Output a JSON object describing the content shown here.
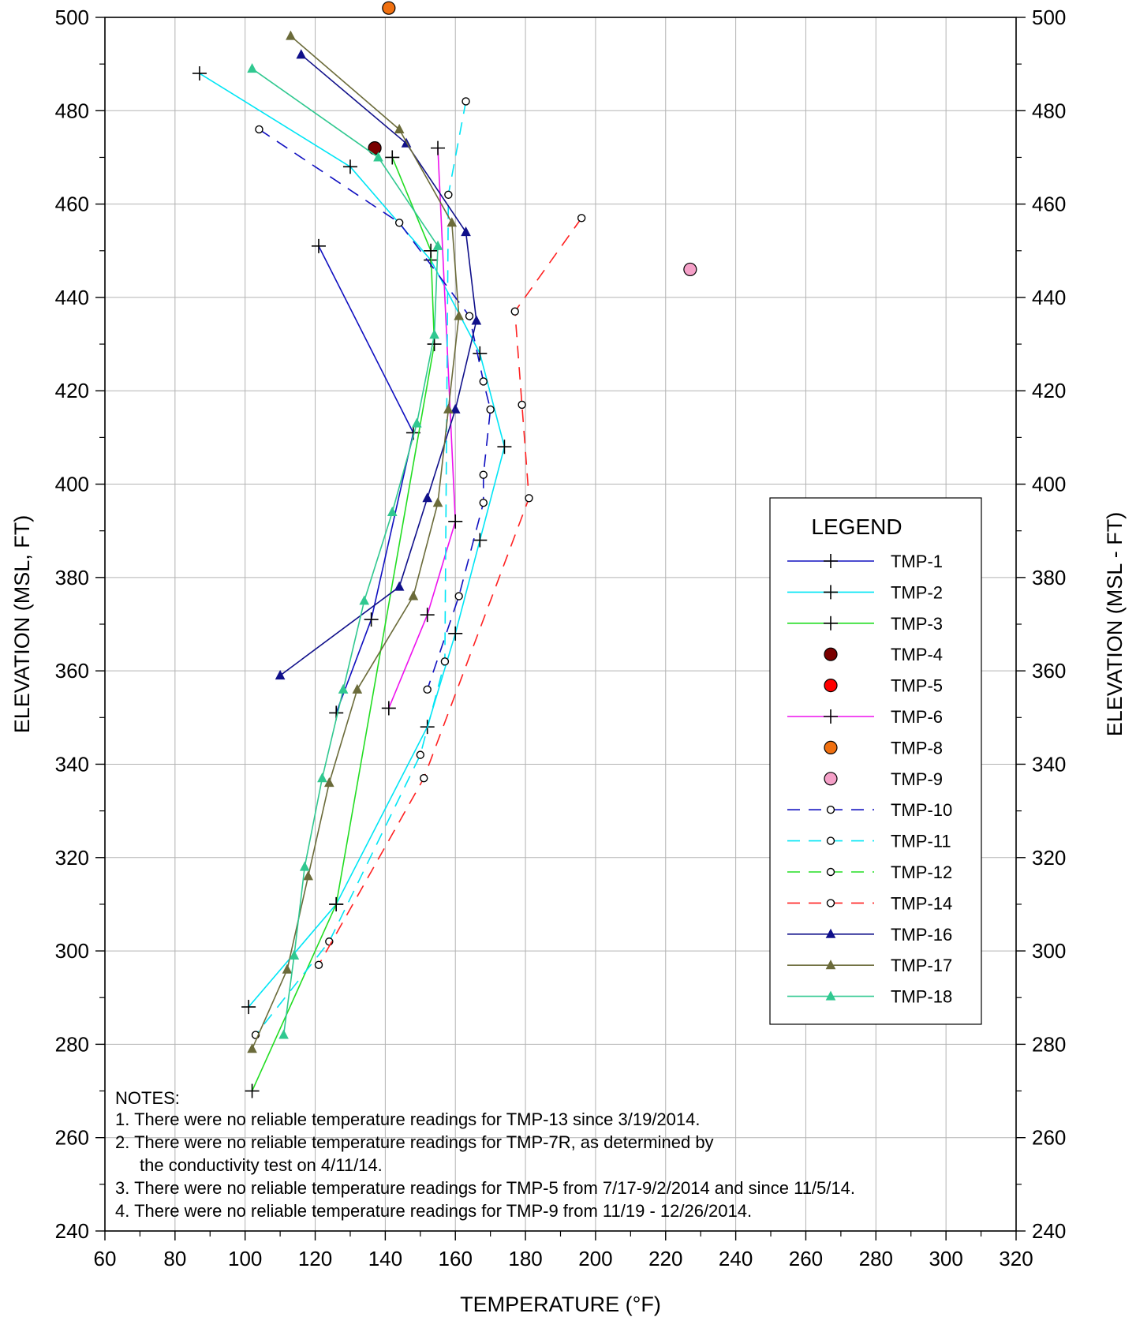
{
  "chart_data": {
    "type": "line",
    "xlabel": "TEMPERATURE (°F)",
    "ylabel_left": "ELEVATION (MSL, FT)",
    "ylabel_right": "ELEVATION (MSL - FT)",
    "xlim": [
      60,
      320
    ],
    "ylim": [
      240,
      500
    ],
    "x_ticks": [
      60,
      80,
      100,
      120,
      140,
      160,
      180,
      200,
      220,
      240,
      260,
      280,
      300,
      320
    ],
    "y_ticks": [
      240,
      260,
      280,
      300,
      320,
      340,
      360,
      380,
      400,
      420,
      440,
      460,
      480,
      500
    ],
    "grid": true,
    "legend_title": "LEGEND",
    "legend_position": "right",
    "notes_title": "NOTES:",
    "notes": [
      "1. There were no reliable temperature readings for TMP-13 since 3/19/2014.",
      "2. There were no reliable temperature readings for TMP-7R, as determined by",
      "the conductivity test on 4/11/14.",
      "3. There were no reliable temperature readings for TMP-5 from 7/17-9/2/2014 and since 11/5/14.",
      "4. There were no reliable temperature readings for TMP-9 from 11/19 - 12/26/2014."
    ],
    "series": [
      {
        "name": "TMP-1",
        "color": "#1010c0",
        "marker": "plus",
        "dash": false,
        "x": [
          121,
          148,
          136,
          126
        ],
        "y": [
          451,
          411,
          371,
          351
        ]
      },
      {
        "name": "TMP-2",
        "color": "#00e5f5",
        "marker": "plus",
        "dash": false,
        "x": [
          87,
          130,
          153,
          167,
          174,
          167,
          160,
          152,
          126,
          101
        ],
        "y": [
          488,
          468,
          448,
          428,
          408,
          388,
          368,
          348,
          310,
          288
        ]
      },
      {
        "name": "TMP-3",
        "color": "#22dd22",
        "marker": "plus",
        "dash": false,
        "x": [
          142,
          153,
          154,
          126,
          102
        ],
        "y": [
          470,
          450,
          430,
          310,
          270
        ]
      },
      {
        "name": "TMP-4",
        "color": "#7a0000",
        "marker": "dot",
        "dash": false,
        "x": [
          137
        ],
        "y": [
          472
        ]
      },
      {
        "name": "TMP-5",
        "color": "#ff0000",
        "marker": "dot",
        "dash": false,
        "x": [],
        "y": []
      },
      {
        "name": "TMP-6",
        "color": "#ee11ee",
        "marker": "plus",
        "dash": false,
        "x": [
          155,
          160,
          152,
          141
        ],
        "y": [
          472,
          392,
          372,
          352
        ]
      },
      {
        "name": "TMP-8",
        "color": "#f07010",
        "marker": "dot",
        "dash": false,
        "x": [
          141
        ],
        "y": [
          502
        ]
      },
      {
        "name": "TMP-9",
        "color": "#f5a0c8",
        "marker": "dot",
        "dash": false,
        "x": [
          227
        ],
        "y": [
          446
        ]
      },
      {
        "name": "TMP-10",
        "color": "#1010c0",
        "marker": "circle",
        "dash": true,
        "x": [
          104,
          144,
          164,
          168,
          170,
          168,
          168,
          161,
          152
        ],
        "y": [
          476,
          456,
          436,
          422,
          416,
          402,
          396,
          376,
          356
        ]
      },
      {
        "name": "TMP-11",
        "color": "#00e5f5",
        "marker": "circle",
        "dash": true,
        "x": [
          163,
          158,
          157,
          150,
          124,
          103
        ],
        "y": [
          482,
          462,
          362,
          342,
          302,
          282
        ]
      },
      {
        "name": "TMP-12",
        "color": "#22dd22",
        "marker": "circle",
        "dash": true,
        "x": [],
        "y": []
      },
      {
        "name": "TMP-14",
        "color": "#ff2020",
        "marker": "circle",
        "dash": true,
        "x": [
          196,
          177,
          179,
          181,
          151,
          121
        ],
        "y": [
          457,
          437,
          417,
          397,
          337,
          297
        ]
      },
      {
        "name": "TMP-16",
        "color": "#10108a",
        "marker": "triangle",
        "dash": false,
        "x": [
          116,
          146,
          163,
          166,
          160,
          152,
          144,
          110
        ],
        "y": [
          492,
          473,
          454,
          435,
          416,
          397,
          378,
          359
        ]
      },
      {
        "name": "TMP-17",
        "color": "#6b6b3a",
        "marker": "triangle",
        "dash": false,
        "x": [
          113,
          144,
          159,
          161,
          158,
          155,
          148,
          132,
          124,
          118,
          112,
          102
        ],
        "y": [
          496,
          476,
          456,
          436,
          416,
          396,
          376,
          356,
          336,
          316,
          296,
          279
        ]
      },
      {
        "name": "TMP-18",
        "color": "#30c890",
        "marker": "triangle",
        "dash": false,
        "x": [
          102,
          138,
          155,
          154,
          149,
          142,
          134,
          128,
          122,
          117,
          114,
          111
        ],
        "y": [
          489,
          470,
          451,
          432,
          413,
          394,
          375,
          356,
          337,
          318,
          299,
          282
        ]
      }
    ]
  }
}
